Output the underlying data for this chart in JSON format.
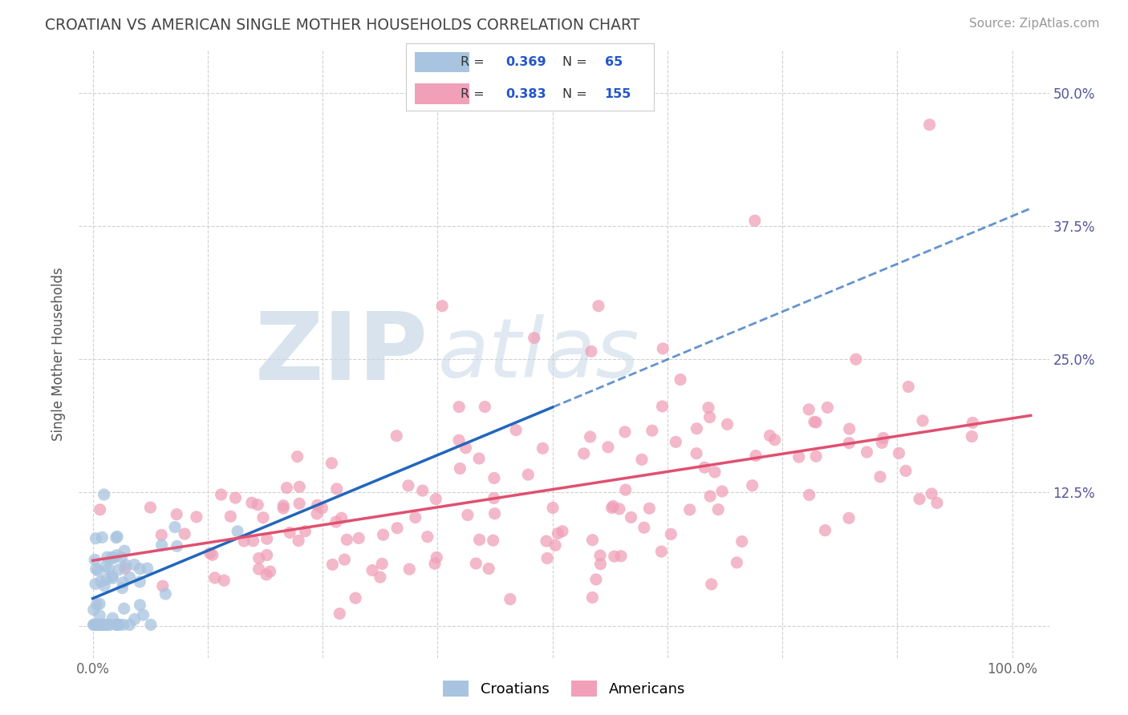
{
  "title": "CROATIAN VS AMERICAN SINGLE MOTHER HOUSEHOLDS CORRELATION CHART",
  "source": "Source: ZipAtlas.com",
  "ylabel": "Single Mother Households",
  "watermark_zip": "ZIP",
  "watermark_atlas": "atlas",
  "croatian_R": 0.369,
  "croatian_N": 65,
  "american_R": 0.383,
  "american_N": 155,
  "croatian_color": "#a8c4e0",
  "american_color": "#f0a0b8",
  "croatian_line_color": "#2266bb",
  "american_line_color": "#e05070",
  "background_color": "#ffffff",
  "grid_color": "#cccccc",
  "x_ticks": [
    0.0,
    0.125,
    0.25,
    0.375,
    0.5,
    0.625,
    0.75,
    0.875,
    1.0
  ],
  "y_ticks": [
    0.0,
    0.125,
    0.25,
    0.375,
    0.5
  ],
  "xlim": [
    -0.015,
    1.04
  ],
  "ylim": [
    -0.03,
    0.54
  ],
  "legend_value_color": "#2255cc"
}
